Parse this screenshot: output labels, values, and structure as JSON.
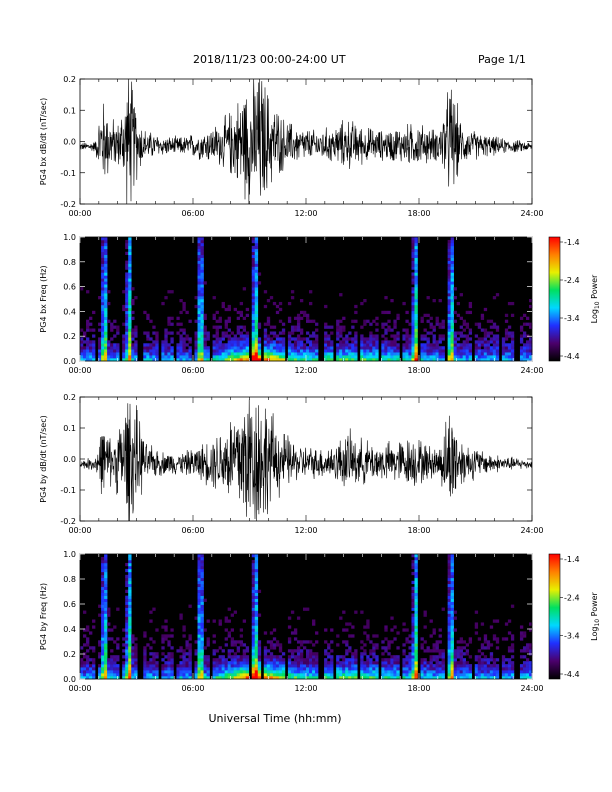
{
  "header": {
    "title": "2018/11/23  00:00-24:00 UT",
    "page": "Page 1/1"
  },
  "xlabel": "Universal Time (hh:mm)",
  "colorbar": {
    "label_prefix": "Log",
    "label_sub": "10",
    "label_suffix": " Power",
    "ticks": [
      "-1.4",
      "-2.4",
      "-3.4",
      "-4.4"
    ],
    "range": [
      -4.4,
      -1.4
    ],
    "colormap": [
      "#000000",
      "#4b006b",
      "#2030ff",
      "#00d8ff",
      "#00e060",
      "#e8f000",
      "#ff8000",
      "#ff0000"
    ]
  },
  "chart_data": [
    {
      "type": "line",
      "panel": "PG4 bx dB/dt",
      "ylabel": "PG4 bx dB/dt (nT/sec)",
      "xlim": [
        0,
        24
      ],
      "ylim": [
        -0.2,
        0.2
      ],
      "xticks": [
        "00:00",
        "06:00",
        "12:00",
        "18:00",
        "24:00"
      ],
      "yticks": [
        "0.2",
        "0.1",
        "0.0",
        "-0.1",
        "-0.2"
      ],
      "x_units": "hours UT",
      "envelope": {
        "x": [
          0,
          0.8,
          1.2,
          1.7,
          2.1,
          2.6,
          3.1,
          3.5,
          4.5,
          5.5,
          6.5,
          7.5,
          8.2,
          8.8,
          9.3,
          9.6,
          10.1,
          10.8,
          11.5,
          12.5,
          13.5,
          14.2,
          15.0,
          16.0,
          17.0,
          17.8,
          18.4,
          19.0,
          19.7,
          20.3,
          21.5,
          22.5,
          23.5,
          24
        ],
        "amplitude": [
          0.01,
          0.015,
          0.12,
          0.07,
          0.06,
          0.2,
          0.08,
          0.04,
          0.025,
          0.025,
          0.04,
          0.06,
          0.1,
          0.16,
          0.2,
          0.2,
          0.12,
          0.07,
          0.05,
          0.04,
          0.05,
          0.07,
          0.05,
          0.04,
          0.05,
          0.06,
          0.05,
          0.04,
          0.16,
          0.05,
          0.03,
          0.02,
          0.015,
          0.01
        ]
      }
    },
    {
      "type": "heatmap",
      "panel": "PG4 bx Freq",
      "ylabel": "PG4 bx Freq (Hz)",
      "xlim": [
        0,
        24
      ],
      "ylim": [
        0,
        1.0
      ],
      "xticks": [
        "00:00",
        "06:00",
        "12:00",
        "18:00",
        "24:00"
      ],
      "yticks": [
        "1.0",
        "0.8",
        "0.6",
        "0.4",
        "0.2",
        "0.0"
      ],
      "z_units": "Log10 Power",
      "zlim": [
        -4.4,
        -1.4
      ],
      "bright_bands_hours": [
        1.3,
        2.6,
        6.4,
        9.3,
        17.8,
        19.7
      ],
      "data_gaps_hours": [
        0.95,
        2.2,
        3.2,
        4.3,
        5.0,
        6.0,
        7.0,
        9.1,
        9.7,
        11.0,
        12.8,
        13.5,
        14.8,
        15.9,
        17.1,
        18.0,
        19.5,
        20.9,
        22.3,
        23.2
      ]
    },
    {
      "type": "line",
      "panel": "PG4 by dB/dt",
      "ylabel": "PG4 by dB/dt (nT/sec)",
      "xlim": [
        0,
        24
      ],
      "ylim": [
        -0.2,
        0.2
      ],
      "xticks": [
        "00:00",
        "06:00",
        "12:00",
        "18:00",
        "24:00"
      ],
      "yticks": [
        "0.2",
        "0.1",
        "0.0",
        "-0.1",
        "-0.2"
      ],
      "x_units": "hours UT",
      "envelope": {
        "x": [
          0,
          0.8,
          1.2,
          1.7,
          2.1,
          2.6,
          3.1,
          3.5,
          4.5,
          5.5,
          6.5,
          7.5,
          8.2,
          8.8,
          9.3,
          9.6,
          10.1,
          10.8,
          11.5,
          12.5,
          13.5,
          14.2,
          15.0,
          16.0,
          17.0,
          17.8,
          18.4,
          19.0,
          19.7,
          20.3,
          21.5,
          22.5,
          23.5,
          24
        ],
        "amplitude": [
          0.01,
          0.02,
          0.1,
          0.06,
          0.1,
          0.2,
          0.12,
          0.05,
          0.03,
          0.03,
          0.05,
          0.09,
          0.14,
          0.2,
          0.2,
          0.2,
          0.13,
          0.08,
          0.05,
          0.04,
          0.05,
          0.08,
          0.06,
          0.05,
          0.06,
          0.07,
          0.05,
          0.04,
          0.15,
          0.06,
          0.03,
          0.02,
          0.015,
          0.01
        ]
      }
    },
    {
      "type": "heatmap",
      "panel": "PG4 by Freq",
      "ylabel": "PG4 by Freq (Hz)",
      "xlim": [
        0,
        24
      ],
      "ylim": [
        0,
        1.0
      ],
      "xticks": [
        "00:00",
        "06:00",
        "12:00",
        "18:00",
        "24:00"
      ],
      "yticks": [
        "1.0",
        "0.8",
        "0.6",
        "0.4",
        "0.2",
        "0.0"
      ],
      "z_units": "Log10 Power",
      "zlim": [
        -4.4,
        -1.4
      ],
      "bright_bands_hours": [
        1.3,
        2.6,
        6.4,
        9.3,
        17.8,
        19.7
      ],
      "data_gaps_hours": [
        0.95,
        2.2,
        3.2,
        4.3,
        5.0,
        6.0,
        7.0,
        9.1,
        9.7,
        11.0,
        12.8,
        13.5,
        14.8,
        15.9,
        17.1,
        18.0,
        19.5,
        20.9,
        22.3,
        23.2
      ]
    }
  ]
}
